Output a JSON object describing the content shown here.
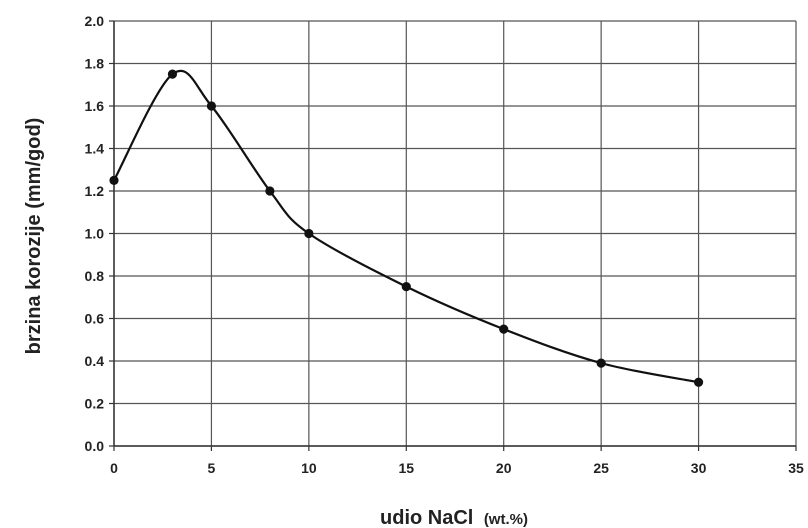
{
  "chart_data": {
    "type": "line",
    "xlabel_main": "udio NaCl",
    "xlabel_unit": "(wt.%)",
    "ylabel": "brzina korozije (mm/god)",
    "xlim": [
      0,
      35
    ],
    "ylim": [
      0.0,
      2.0
    ],
    "x_ticks": [
      "0",
      "5",
      "10",
      "15",
      "20",
      "25",
      "30",
      "35"
    ],
    "y_ticks": [
      "0.0",
      "0.2",
      "0.4",
      "0.6",
      "0.8",
      "1.0",
      "1.2",
      "1.4",
      "1.6",
      "1.8",
      "2.0"
    ],
    "grid": true,
    "series": [
      {
        "points": [
          {
            "x": 0,
            "y": 1.25
          },
          {
            "x": 3,
            "y": 1.75
          },
          {
            "x": 5,
            "y": 1.6
          },
          {
            "x": 8,
            "y": 1.2
          },
          {
            "x": 10,
            "y": 1.0
          },
          {
            "x": 15,
            "y": 0.75
          },
          {
            "x": 20,
            "y": 0.55
          },
          {
            "x": 25,
            "y": 0.39
          },
          {
            "x": 30,
            "y": 0.3
          }
        ]
      }
    ],
    "colors": {
      "line": "#111111",
      "grid": "#555555",
      "axis": "#333333"
    }
  }
}
